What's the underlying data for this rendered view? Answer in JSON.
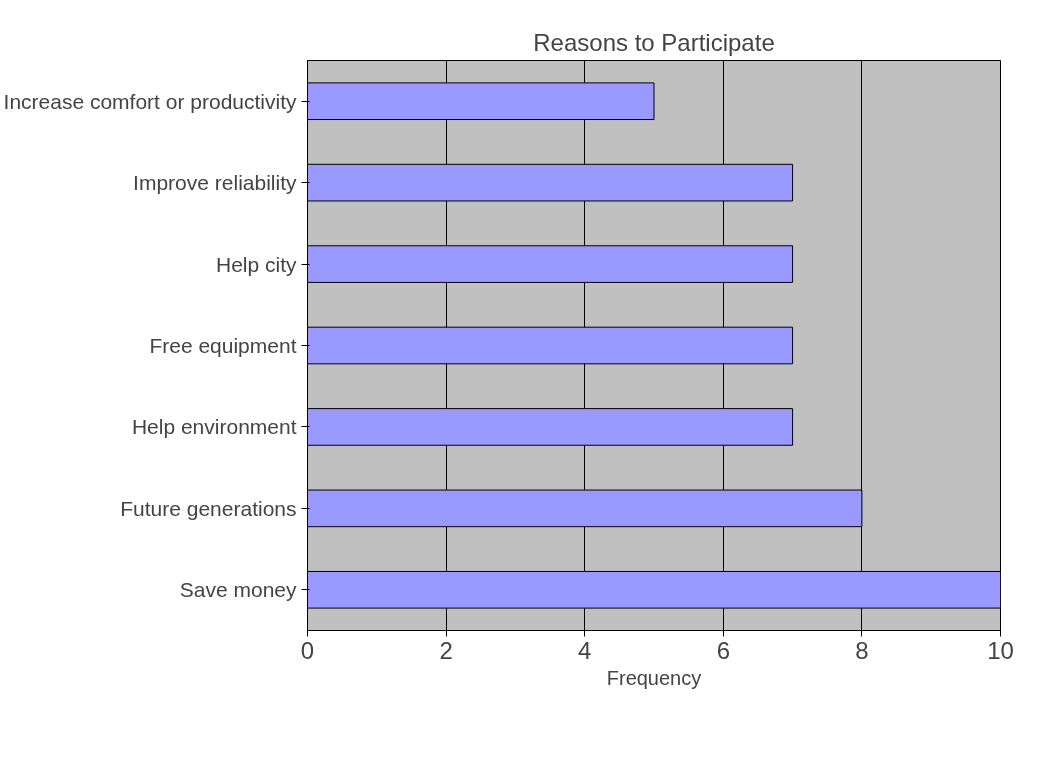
{
  "chart_data": {
    "type": "bar",
    "orientation": "horizontal",
    "title": "Reasons to Participate",
    "xlabel": "Frequency",
    "categories": [
      "Increase comfort or productivity",
      "Improve reliability",
      "Help city",
      "Free equipment",
      "Help environment",
      "Future generations",
      "Save money"
    ],
    "values": [
      5,
      7,
      7,
      7,
      7,
      8,
      10
    ],
    "color": "#9999ff",
    "xlim": [
      0,
      10
    ],
    "xticks": [
      0,
      2,
      4,
      6,
      8,
      10
    ],
    "grid": "x"
  }
}
